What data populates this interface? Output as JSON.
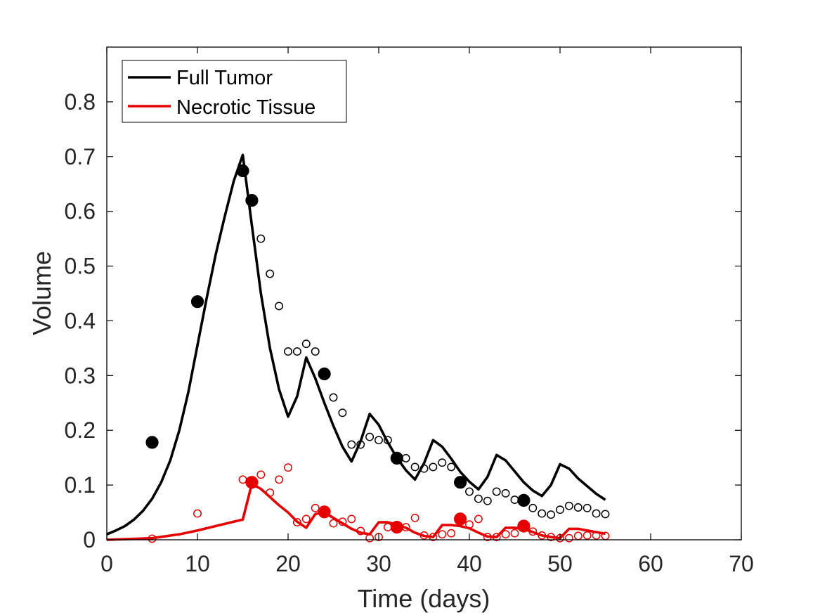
{
  "chart_data": {
    "type": "line",
    "title": "",
    "xlabel": "Time (days)",
    "ylabel": "Volume",
    "xlim": [
      0,
      70
    ],
    "ylim": [
      0,
      0.9
    ],
    "xticks": [
      0,
      10,
      20,
      30,
      40,
      50,
      60,
      70
    ],
    "xtick_labels": [
      "0",
      "10",
      "20",
      "30",
      "40",
      "50",
      "60",
      "70"
    ],
    "yticks": [
      0,
      0.1,
      0.2,
      0.3,
      0.4,
      0.5,
      0.6,
      0.7,
      0.8
    ],
    "ytick_labels": [
      "0",
      "0.1",
      "0.2",
      "0.3",
      "0.4",
      "0.5",
      "0.6",
      "0.7",
      "0.8"
    ],
    "grid": false,
    "legend": {
      "placement": "top-left",
      "entries": [
        "Full Tumor",
        "Necrotic Tissue"
      ]
    },
    "series": [
      {
        "name": "Full Tumor",
        "color": "#000000",
        "line": {
          "x": [
            0,
            1,
            2,
            3,
            4,
            5,
            6,
            7,
            8,
            9,
            10,
            11,
            12,
            13,
            14,
            15,
            16,
            17,
            18,
            19,
            20,
            21,
            22,
            23,
            24,
            25,
            26,
            27,
            28,
            29,
            30,
            31,
            32,
            33,
            34,
            35,
            36,
            37,
            38,
            39,
            40,
            41,
            42,
            43,
            44,
            45,
            46,
            47,
            48,
            49,
            50,
            51,
            52,
            53,
            54,
            55
          ],
          "y": [
            0.01,
            0.017,
            0.025,
            0.037,
            0.053,
            0.075,
            0.105,
            0.145,
            0.2,
            0.27,
            0.355,
            0.44,
            0.52,
            0.59,
            0.655,
            0.703,
            0.575,
            0.45,
            0.35,
            0.275,
            0.225,
            0.262,
            0.333,
            0.295,
            0.25,
            0.208,
            0.17,
            0.143,
            0.18,
            0.23,
            0.21,
            0.178,
            0.15,
            0.127,
            0.11,
            0.14,
            0.182,
            0.17,
            0.148,
            0.124,
            0.106,
            0.092,
            0.115,
            0.155,
            0.145,
            0.125,
            0.105,
            0.09,
            0.08,
            0.1,
            0.138,
            0.13,
            0.112,
            0.098,
            0.084,
            0.073
          ]
        },
        "observed_filled": {
          "x": [
            5,
            10,
            15,
            16,
            24,
            32,
            39,
            46
          ],
          "y": [
            0.178,
            0.435,
            0.674,
            0.62,
            0.303,
            0.149,
            0.105,
            0.072
          ]
        },
        "observed_open": {
          "x": [
            17,
            18,
            19,
            20,
            21,
            22,
            23,
            25,
            26,
            27,
            28,
            29,
            30,
            31,
            33,
            34,
            35,
            36,
            37,
            38,
            40,
            41,
            42,
            43,
            44,
            45,
            47,
            48,
            49,
            50,
            51,
            52,
            53,
            54,
            55
          ],
          "y": [
            0.55,
            0.486,
            0.427,
            0.344,
            0.344,
            0.358,
            0.344,
            0.26,
            0.232,
            0.174,
            0.174,
            0.188,
            0.182,
            0.182,
            0.149,
            0.133,
            0.13,
            0.133,
            0.141,
            0.133,
            0.088,
            0.075,
            0.071,
            0.088,
            0.085,
            0.073,
            0.058,
            0.048,
            0.046,
            0.055,
            0.062,
            0.059,
            0.058,
            0.048,
            0.047
          ]
        }
      },
      {
        "name": "Necrotic Tissue",
        "color": "#e60000",
        "line": {
          "x": [
            0,
            5,
            8,
            10,
            12,
            14,
            15,
            16,
            17,
            18,
            19,
            20,
            21,
            22,
            23,
            24,
            25,
            26,
            27,
            28,
            29,
            30,
            31,
            32,
            33,
            34,
            35,
            36,
            37,
            38,
            39,
            40,
            41,
            42,
            43,
            44,
            45,
            46,
            47,
            48,
            49,
            50,
            51,
            52,
            53,
            54,
            55
          ],
          "y": [
            0.0,
            0.003,
            0.01,
            0.017,
            0.025,
            0.033,
            0.037,
            0.102,
            0.093,
            0.078,
            0.063,
            0.05,
            0.033,
            0.022,
            0.047,
            0.05,
            0.04,
            0.03,
            0.02,
            0.013,
            0.01,
            0.032,
            0.032,
            0.028,
            0.022,
            0.013,
            0.007,
            0.005,
            0.027,
            0.027,
            0.025,
            0.021,
            0.013,
            0.006,
            0.005,
            0.022,
            0.022,
            0.02,
            0.014,
            0.008,
            0.005,
            0.003,
            0.02,
            0.02,
            0.017,
            0.014,
            0.011
          ]
        },
        "observed_filled": {
          "x": [
            16,
            24,
            32,
            39,
            46
          ],
          "y": [
            0.105,
            0.051,
            0.023,
            0.038,
            0.025
          ]
        },
        "observed_open": {
          "x": [
            5,
            10,
            15,
            17,
            18,
            19,
            20,
            21,
            22,
            23,
            25,
            26,
            27,
            28,
            29,
            30,
            31,
            33,
            34,
            35,
            36,
            37,
            38,
            40,
            41,
            42,
            43,
            44,
            45,
            47,
            48,
            49,
            50,
            51,
            52,
            53,
            54,
            55
          ],
          "y": [
            0.002,
            0.048,
            0.11,
            0.119,
            0.086,
            0.11,
            0.132,
            0.032,
            0.038,
            0.058,
            0.03,
            0.033,
            0.038,
            0.016,
            0.003,
            0.005,
            0.023,
            0.023,
            0.04,
            0.008,
            0.005,
            0.01,
            0.012,
            0.028,
            0.038,
            0.005,
            0.005,
            0.01,
            0.012,
            0.015,
            0.008,
            0.005,
            0.003,
            0.003,
            0.007,
            0.008,
            0.008,
            0.007
          ]
        }
      }
    ]
  }
}
